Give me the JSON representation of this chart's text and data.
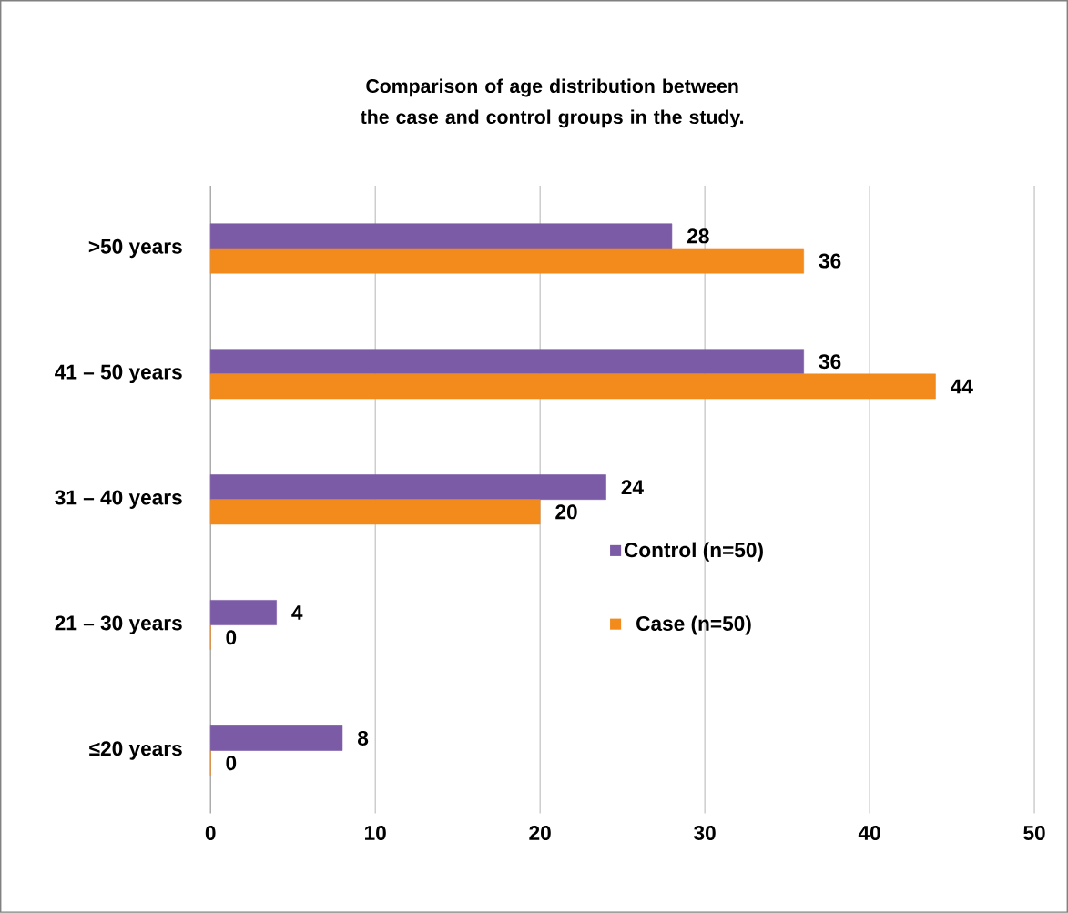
{
  "chart_data": {
    "type": "bar",
    "orientation": "horizontal",
    "title": "Comparison of age distribution between the case and control groups in the study.",
    "categories": [
      ">50 years",
      "41 – 50 years",
      "31 – 40 years",
      "21 – 30 years",
      "≤20 years"
    ],
    "series": [
      {
        "name": "Control (n=50)",
        "color": "#7b5aa6",
        "values": [
          28,
          36,
          24,
          4,
          8
        ]
      },
      {
        "name": "Case (n=50)",
        "color": "#f28a1c",
        "values": [
          36,
          44,
          20,
          0,
          0
        ]
      }
    ],
    "xlim": [
      0,
      50
    ],
    "xticks": [
      0,
      10,
      20,
      30,
      40,
      50
    ],
    "grid": "x",
    "legend": "right",
    "data_labels": true
  }
}
